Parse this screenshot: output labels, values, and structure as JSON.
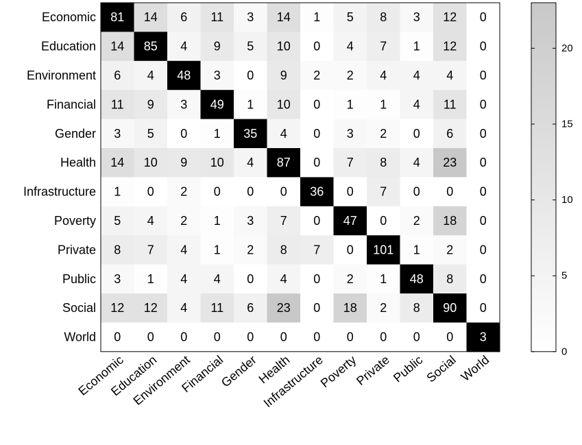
{
  "chart_data": {
    "type": "heatmap",
    "rows": [
      "Economic",
      "Education",
      "Environment",
      "Financial",
      "Gender",
      "Health",
      "Infrastructure",
      "Poverty",
      "Private",
      "Public",
      "Social",
      "World"
    ],
    "columns": [
      "Economic",
      "Education",
      "Environment",
      "Financial",
      "Gender",
      "Health",
      "Infrastructure",
      "Poverty",
      "Private",
      "Public",
      "Social",
      "World"
    ],
    "values": [
      [
        81,
        14,
        6,
        11,
        3,
        14,
        1,
        5,
        8,
        3,
        12,
        0
      ],
      [
        14,
        85,
        4,
        9,
        5,
        10,
        0,
        4,
        7,
        1,
        12,
        0
      ],
      [
        6,
        4,
        48,
        3,
        0,
        9,
        2,
        2,
        4,
        4,
        4,
        0
      ],
      [
        11,
        9,
        3,
        49,
        1,
        10,
        0,
        1,
        1,
        4,
        11,
        0
      ],
      [
        3,
        5,
        0,
        1,
        35,
        4,
        0,
        3,
        2,
        0,
        6,
        0
      ],
      [
        14,
        10,
        9,
        10,
        4,
        87,
        0,
        7,
        8,
        4,
        23,
        0
      ],
      [
        1,
        0,
        2,
        0,
        0,
        0,
        36,
        0,
        7,
        0,
        0,
        0
      ],
      [
        5,
        4,
        2,
        1,
        3,
        7,
        0,
        47,
        0,
        2,
        18,
        0
      ],
      [
        8,
        7,
        4,
        1,
        2,
        8,
        7,
        0,
        101,
        1,
        2,
        0
      ],
      [
        3,
        1,
        4,
        4,
        0,
        4,
        0,
        2,
        1,
        48,
        8,
        0
      ],
      [
        12,
        12,
        4,
        11,
        6,
        23,
        0,
        18,
        2,
        8,
        90,
        0
      ],
      [
        0,
        0,
        0,
        0,
        0,
        0,
        0,
        0,
        0,
        0,
        0,
        3
      ]
    ],
    "colorbar": {
      "range": [
        0,
        23
      ],
      "ticks": [
        0,
        5,
        10,
        15,
        20
      ]
    },
    "diagonal_color": "#000000",
    "colormap": [
      "#ffffff",
      "#c8c8c8"
    ]
  }
}
